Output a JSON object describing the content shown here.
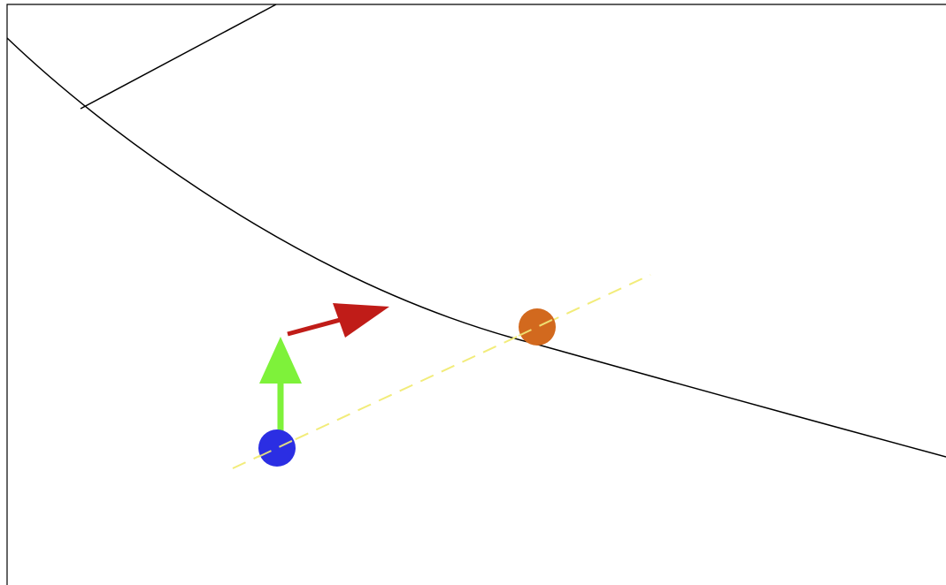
{
  "diagram": {
    "background_color": "#ffffff",
    "frame_color": "#000000",
    "curve_color": "#000000",
    "guide_line": {
      "color": "#f2ec7a",
      "style": "dashed"
    },
    "points": [
      {
        "name": "blue-point",
        "color": "#2b2ee3"
      },
      {
        "name": "orange-point",
        "color": "#d2691e"
      }
    ],
    "arrows": [
      {
        "name": "green-arrow",
        "color": "#7ef23a"
      },
      {
        "name": "red-arrow",
        "color": "#c01c18"
      }
    ]
  }
}
